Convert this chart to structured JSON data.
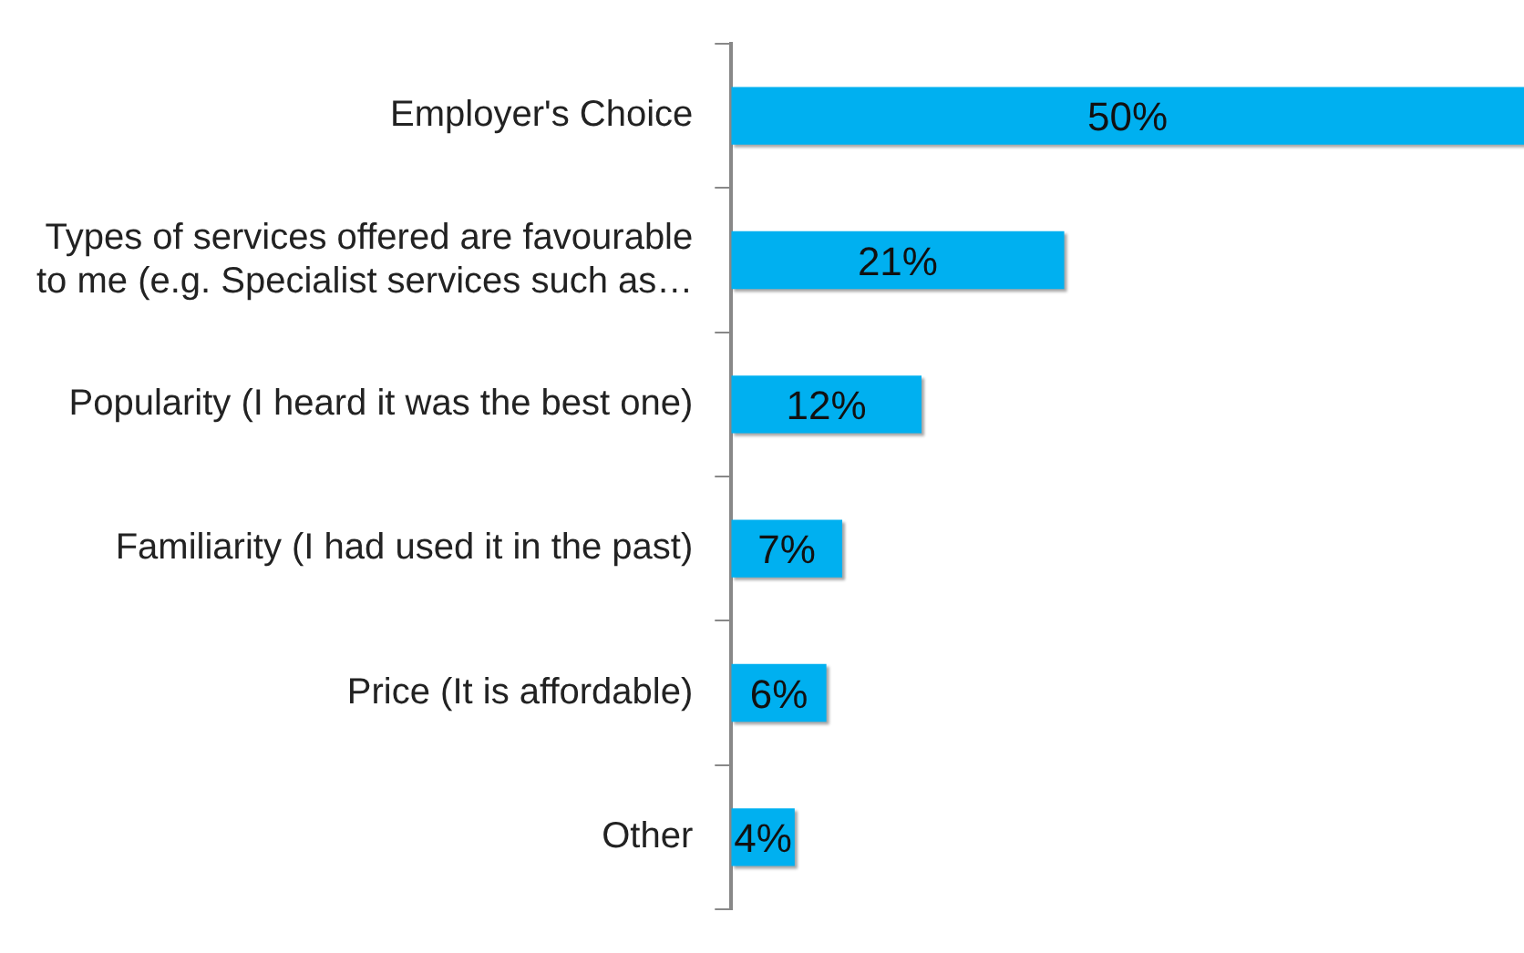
{
  "chart_data": {
    "type": "bar",
    "orientation": "horizontal",
    "categories": [
      "Employer's Choice",
      "Types of services offered are favourable to me (e.g. Specialist services such as…",
      "Popularity (I heard it was the best one)",
      "Familiarity (I had used it in the past)",
      "Price (It is affordable)",
      "Other"
    ],
    "values": [
      50,
      21,
      12,
      7,
      6,
      4
    ],
    "color": "#00b0f0",
    "value_labels": [
      "50%",
      "21%",
      "12%",
      "7%",
      "6%",
      "4%"
    ],
    "legend": false,
    "tick_labels": "y"
  }
}
